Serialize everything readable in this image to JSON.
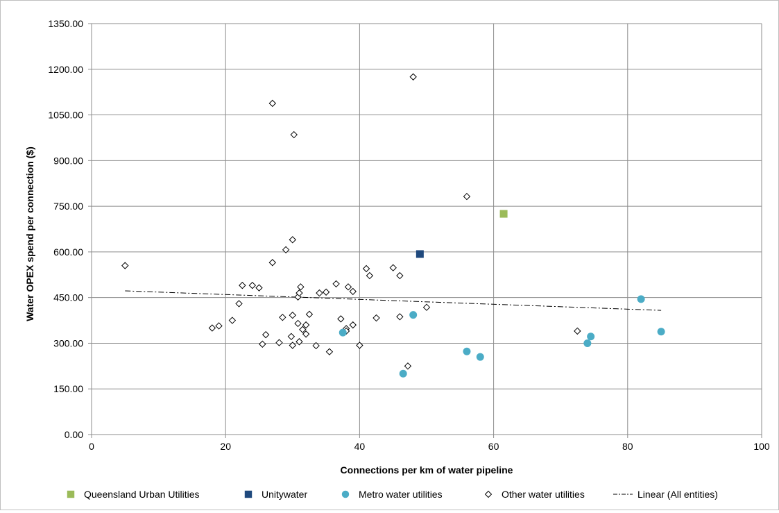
{
  "chart_data": {
    "type": "scatter",
    "title": "",
    "xlabel": "Connections per km of water pipeline",
    "ylabel": "Water OPEX spend per connection ($)",
    "xlim": [
      0,
      100
    ],
    "ylim": [
      0,
      1350
    ],
    "x_ticks": [
      "0",
      "20",
      "40",
      "60",
      "80",
      "100"
    ],
    "y_ticks": [
      "0.00",
      "150.00",
      "300.00",
      "450.00",
      "600.00",
      "750.00",
      "900.00",
      "1050.00",
      "1200.00",
      "1350.00"
    ],
    "grid": true,
    "legend_position": "bottom",
    "series": [
      {
        "name": "Queensland Urban Utilities",
        "marker": "square",
        "color": "#9BBB59",
        "points": [
          [
            61.5,
            725
          ]
        ]
      },
      {
        "name": "Unitywater",
        "marker": "square",
        "color": "#1F497D",
        "points": [
          [
            49,
            593
          ]
        ]
      },
      {
        "name": "Metro water utilities",
        "marker": "circle",
        "color": "#4BACC6",
        "points": [
          [
            46.5,
            200
          ],
          [
            48,
            393
          ],
          [
            56,
            273
          ],
          [
            58,
            255
          ],
          [
            37.5,
            335
          ],
          [
            74,
            300
          ],
          [
            74.5,
            322
          ],
          [
            82,
            445
          ],
          [
            85,
            338
          ]
        ]
      },
      {
        "name": "Other water utilities",
        "marker": "diamond",
        "color": "#000000",
        "points": [
          [
            5,
            555
          ],
          [
            18,
            350
          ],
          [
            19,
            357
          ],
          [
            21,
            375
          ],
          [
            22,
            430
          ],
          [
            22.5,
            490
          ],
          [
            24,
            490
          ],
          [
            25,
            482
          ],
          [
            25.5,
            297
          ],
          [
            26,
            328
          ],
          [
            27,
            565
          ],
          [
            27,
            1088
          ],
          [
            28,
            302
          ],
          [
            28.5,
            385
          ],
          [
            29,
            607
          ],
          [
            29.8,
            322
          ],
          [
            30,
            293
          ],
          [
            30,
            640
          ],
          [
            30,
            392
          ],
          [
            30.2,
            985
          ],
          [
            30.8,
            365
          ],
          [
            30.8,
            452
          ],
          [
            31,
            465
          ],
          [
            31.2,
            485
          ],
          [
            31,
            305
          ],
          [
            31.5,
            345
          ],
          [
            32,
            360
          ],
          [
            32,
            330
          ],
          [
            32.5,
            395
          ],
          [
            33.5,
            292
          ],
          [
            34,
            465
          ],
          [
            35,
            468
          ],
          [
            35.5,
            272
          ],
          [
            36.5,
            495
          ],
          [
            37.2,
            380
          ],
          [
            38,
            348
          ],
          [
            38,
            340
          ],
          [
            38.3,
            485
          ],
          [
            39,
            470
          ],
          [
            39,
            360
          ],
          [
            40,
            293
          ],
          [
            41,
            545
          ],
          [
            41.5,
            522
          ],
          [
            42.5,
            383
          ],
          [
            45,
            548
          ],
          [
            46,
            522
          ],
          [
            46,
            387
          ],
          [
            47.2,
            225
          ],
          [
            48,
            1175
          ],
          [
            50,
            418
          ],
          [
            56,
            782
          ],
          [
            72.5,
            340
          ]
        ]
      }
    ],
    "trendline": {
      "name": "Linear (All entities)",
      "style": "dash-dot",
      "color": "#000000",
      "x_range": [
        5,
        85
      ],
      "y_start": 472,
      "y_end": 408
    }
  }
}
